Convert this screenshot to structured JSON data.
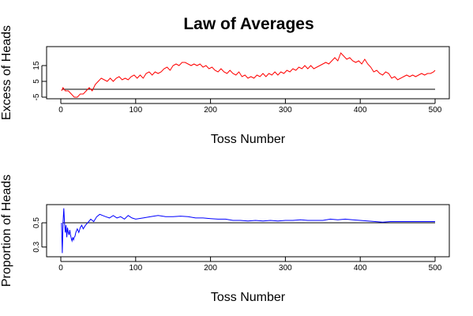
{
  "figure": {
    "title": "Law of Averages"
  },
  "chart_data": [
    {
      "type": "line",
      "title": "Law of Averages",
      "xlabel": "Toss Number",
      "ylabel": "Excess of Heads",
      "xlim": [
        0,
        500
      ],
      "ylim": [
        -6,
        27
      ],
      "x_ticks": [
        0,
        100,
        200,
        300,
        400,
        500
      ],
      "x_tick_labels": [
        "0",
        "100",
        "200",
        "300",
        "400",
        "500"
      ],
      "y_ticks": [
        -5,
        5,
        15
      ],
      "y_tick_labels": [
        "-5",
        "5",
        "15"
      ],
      "reference_line": 0,
      "color": "#ff0000",
      "reference_color": "#000000",
      "grid": false,
      "series": [
        {
          "x": [
            1,
            3,
            6,
            10,
            14,
            18,
            22,
            26,
            30,
            34,
            38,
            42,
            46,
            50,
            54,
            58,
            62,
            66,
            70,
            74,
            78,
            82,
            86,
            90,
            94,
            98,
            102,
            106,
            110,
            114,
            118,
            122,
            126,
            130,
            134,
            138,
            142,
            146,
            150,
            154,
            158,
            162,
            166,
            170,
            174,
            178,
            182,
            186,
            190,
            194,
            198,
            202,
            206,
            210,
            214,
            218,
            222,
            226,
            230,
            234,
            238,
            242,
            246,
            250,
            254,
            258,
            262,
            266,
            270,
            274,
            278,
            282,
            286,
            290,
            294,
            298,
            302,
            306,
            310,
            314,
            318,
            322,
            326,
            330,
            334,
            338,
            342,
            346,
            350,
            354,
            358,
            362,
            366,
            370,
            374,
            378,
            382,
            386,
            390,
            394,
            398,
            402,
            406,
            410,
            414,
            418,
            422,
            426,
            430,
            434,
            438,
            442,
            446,
            450,
            454,
            458,
            462,
            466,
            470,
            474,
            478,
            482,
            486,
            490,
            494,
            498,
            500
          ],
          "y": [
            -1,
            1,
            -1,
            -1,
            -3,
            -5,
            -5,
            -3,
            -3,
            -1,
            1,
            -1,
            3,
            5,
            7,
            6,
            5,
            7,
            5,
            7,
            8,
            6,
            7,
            6,
            8,
            9,
            7,
            9,
            7,
            10,
            11,
            9,
            11,
            10,
            11,
            13,
            14,
            12,
            15,
            16,
            15,
            17,
            17,
            16,
            15,
            16,
            15,
            16,
            14,
            15,
            13,
            14,
            12,
            11,
            13,
            11,
            10,
            12,
            10,
            9,
            11,
            8,
            9,
            7,
            8,
            7,
            9,
            8,
            10,
            8,
            10,
            9,
            11,
            9,
            11,
            10,
            12,
            11,
            13,
            12,
            14,
            13,
            15,
            13,
            15,
            13,
            14,
            15,
            16,
            17,
            16,
            18,
            20,
            18,
            23,
            21,
            19,
            20,
            18,
            17,
            18,
            16,
            19,
            16,
            14,
            11,
            12,
            10,
            9,
            11,
            10,
            7,
            8,
            6,
            7,
            8,
            9,
            8,
            9,
            8,
            9,
            10,
            9,
            10,
            10,
            11,
            12
          ]
        }
      ]
    },
    {
      "type": "line",
      "xlabel": "Toss Number",
      "ylabel": "Proportion of Heads",
      "xlim": [
        0,
        500
      ],
      "ylim": [
        0.22,
        0.65
      ],
      "x_ticks": [
        0,
        100,
        200,
        300,
        400,
        500
      ],
      "x_tick_labels": [
        "0",
        "100",
        "200",
        "300",
        "400",
        "500"
      ],
      "y_ticks": [
        0.3,
        0.5
      ],
      "y_tick_labels": [
        "0.3",
        "0.5"
      ],
      "reference_line": 0.5,
      "color": "#0000ff",
      "reference_color": "#000000",
      "grid": false,
      "series": [
        {
          "x": [
            1,
            2,
            3,
            4,
            5,
            6,
            7,
            8,
            9,
            10,
            11,
            12,
            13,
            14,
            15,
            16,
            17,
            18,
            19,
            20,
            22,
            24,
            26,
            28,
            30,
            33,
            36,
            40,
            44,
            48,
            52,
            56,
            60,
            65,
            70,
            75,
            80,
            85,
            90,
            95,
            100,
            110,
            120,
            130,
            140,
            150,
            160,
            170,
            180,
            190,
            200,
            210,
            220,
            230,
            240,
            250,
            260,
            270,
            280,
            290,
            300,
            310,
            320,
            330,
            340,
            350,
            360,
            370,
            380,
            390,
            400,
            410,
            420,
            430,
            440,
            450,
            460,
            470,
            480,
            490,
            500
          ],
          "y": [
            0.5,
            0.25,
            0.5,
            0.62,
            0.5,
            0.42,
            0.48,
            0.38,
            0.46,
            0.42,
            0.4,
            0.44,
            0.4,
            0.37,
            0.35,
            0.38,
            0.36,
            0.38,
            0.39,
            0.42,
            0.45,
            0.42,
            0.46,
            0.48,
            0.45,
            0.48,
            0.5,
            0.53,
            0.51,
            0.55,
            0.57,
            0.56,
            0.55,
            0.54,
            0.56,
            0.54,
            0.55,
            0.53,
            0.56,
            0.54,
            0.53,
            0.54,
            0.55,
            0.56,
            0.55,
            0.55,
            0.555,
            0.55,
            0.54,
            0.54,
            0.535,
            0.53,
            0.53,
            0.52,
            0.52,
            0.515,
            0.52,
            0.515,
            0.52,
            0.515,
            0.52,
            0.52,
            0.525,
            0.52,
            0.52,
            0.52,
            0.53,
            0.525,
            0.53,
            0.525,
            0.52,
            0.515,
            0.51,
            0.505,
            0.51,
            0.51,
            0.51,
            0.51,
            0.51,
            0.51,
            0.51
          ]
        }
      ]
    }
  ]
}
